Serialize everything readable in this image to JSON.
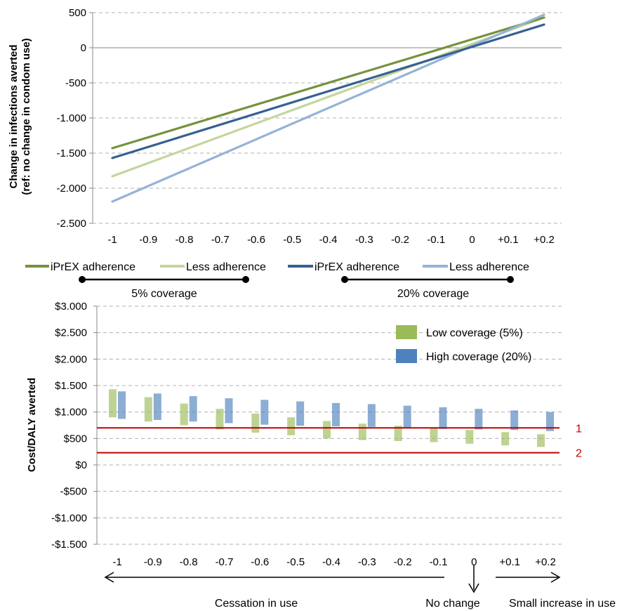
{
  "colors": {
    "iprex_5": "#76923c",
    "less_5": "#c3d69b",
    "iprex_20": "#366092",
    "less_20": "#95b3d7",
    "low_cov_bar": "#9bbb59",
    "high_cov_bar": "#4f81bd",
    "threshold": "#c00000",
    "grid": "#b0b0b0"
  },
  "chart_data": [
    {
      "type": "line",
      "ylabel_line1": "Change in infections averted",
      "ylabel_line2": "(ref: no change in condom use)",
      "x": [
        -1,
        -0.9,
        -0.8,
        -0.7,
        -0.6,
        -0.5,
        -0.4,
        -0.3,
        -0.2,
        -0.1,
        0,
        0.1,
        0.2
      ],
      "x_tick_labels": [
        "-1",
        "-0.9",
        "-0.8",
        "-0.7",
        "-0.6",
        "-0.5",
        "-0.4",
        "-0.3",
        "-0.2",
        "-0.1",
        "0",
        "+0.1",
        "+0.2"
      ],
      "y_ticks": [
        500,
        0,
        -500,
        -1000,
        -1500,
        -2000,
        -2500
      ],
      "y_tick_labels": [
        "500",
        "0",
        "-500",
        "-1.000",
        "-1.500",
        "-2.000",
        "-2.500"
      ],
      "ylim": [
        -2500,
        500
      ],
      "grid": true,
      "series": [
        {
          "name": "iPrEX adherence",
          "group": "5% coverage",
          "color_key": "iprex_5",
          "endpoints": [
            [
              -1,
              -1430
            ],
            [
              0.2,
              430
            ]
          ]
        },
        {
          "name": "Less adherence",
          "group": "5% coverage",
          "color_key": "less_5",
          "endpoints": [
            [
              -1,
              -1830
            ],
            [
              0.2,
              430
            ]
          ]
        },
        {
          "name": "iPrEX adherence",
          "group": "20% coverage",
          "color_key": "iprex_20",
          "endpoints": [
            [
              -1,
              -1570
            ],
            [
              0.2,
              330
            ]
          ]
        },
        {
          "name": "Less adherence",
          "group": "20% coverage",
          "color_key": "less_20",
          "endpoints": [
            [
              -1,
              -2190
            ],
            [
              0.2,
              470
            ]
          ]
        }
      ],
      "legend": {
        "placement": "bottom",
        "entries": [
          "iPrEX adherence",
          "Less adherence",
          "iPrEX adherence",
          "Less adherence"
        ],
        "groups": [
          "5% coverage",
          "20% coverage"
        ]
      }
    },
    {
      "type": "bar",
      "subtype": "floating-range",
      "ylabel": "Cost/DALY averted",
      "categories": [
        "-1",
        "-0.9",
        "-0.8",
        "-0.7",
        "-0.6",
        "-0.5",
        "-0.4",
        "-0.3",
        "-0.2",
        "-0.1",
        "0",
        "+0.1",
        "+0.2"
      ],
      "y_ticks": [
        3000,
        2500,
        2000,
        1500,
        1000,
        500,
        0,
        -500,
        -1000,
        -1500
      ],
      "y_tick_labels": [
        "$3.000",
        "$2.500",
        "$2.000",
        "$1.500",
        "$1.000",
        "$500",
        "$0",
        "-$500",
        "-$1.000",
        "-$1.500"
      ],
      "ylim": [
        -1500,
        3000
      ],
      "grid": true,
      "series": [
        {
          "name": "Low coverage (5%)",
          "color_key": "low_cov_bar",
          "ranges": [
            [
              900,
              1430
            ],
            [
              820,
              1280
            ],
            [
              750,
              1160
            ],
            [
              670,
              1060
            ],
            [
              610,
              970
            ],
            [
              560,
              900
            ],
            [
              500,
              830
            ],
            [
              470,
              780
            ],
            [
              450,
              740
            ],
            [
              430,
              700
            ],
            [
              400,
              660
            ],
            [
              370,
              620
            ],
            [
              340,
              580
            ]
          ]
        },
        {
          "name": "High coverage (20%)",
          "color_key": "high_cov_bar",
          "ranges": [
            [
              870,
              1390
            ],
            [
              850,
              1350
            ],
            [
              820,
              1300
            ],
            [
              790,
              1260
            ],
            [
              760,
              1230
            ],
            [
              740,
              1200
            ],
            [
              730,
              1170
            ],
            [
              720,
              1150
            ],
            [
              700,
              1120
            ],
            [
              680,
              1090
            ],
            [
              670,
              1060
            ],
            [
              660,
              1030
            ],
            [
              640,
              1000
            ]
          ]
        }
      ],
      "reference_lines": [
        {
          "value": 700,
          "label": "1"
        },
        {
          "value": 230,
          "label": "2"
        }
      ],
      "legend": {
        "placement": "top-right",
        "entries": [
          "Low coverage (5%)",
          "High coverage (20%)"
        ]
      },
      "annotations": {
        "left": "Cessation in use",
        "middle": "No change",
        "right": "Small increase in use"
      }
    }
  ]
}
